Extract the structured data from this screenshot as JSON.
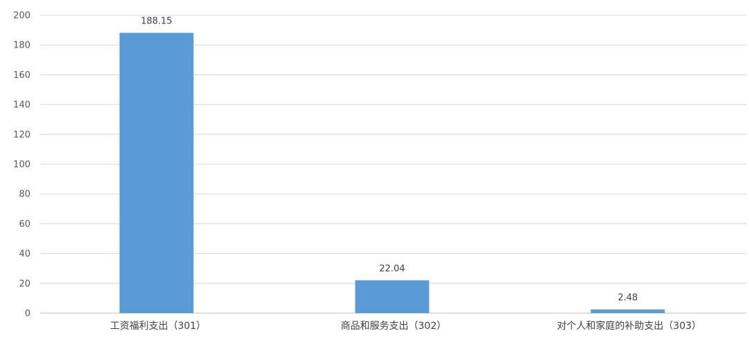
{
  "chart_data": {
    "type": "bar",
    "title": "",
    "xlabel": "",
    "ylabel": "",
    "categories": [
      "工资福利支出（301）",
      "商品和服务支出（302）",
      "对个人和家庭的补助支出（303）"
    ],
    "values": [
      188.15,
      22.04,
      2.48
    ],
    "data_labels": [
      "188.15",
      "22.04",
      "2.48"
    ],
    "ylim": [
      0,
      200
    ],
    "yticks": [
      "0",
      "20",
      "40",
      "60",
      "80",
      "100",
      "120",
      "140",
      "160",
      "180",
      "200"
    ],
    "grid": true,
    "legend": "none",
    "bar_color": "#5b9bd5",
    "grid_color": "#d9d9d9"
  }
}
